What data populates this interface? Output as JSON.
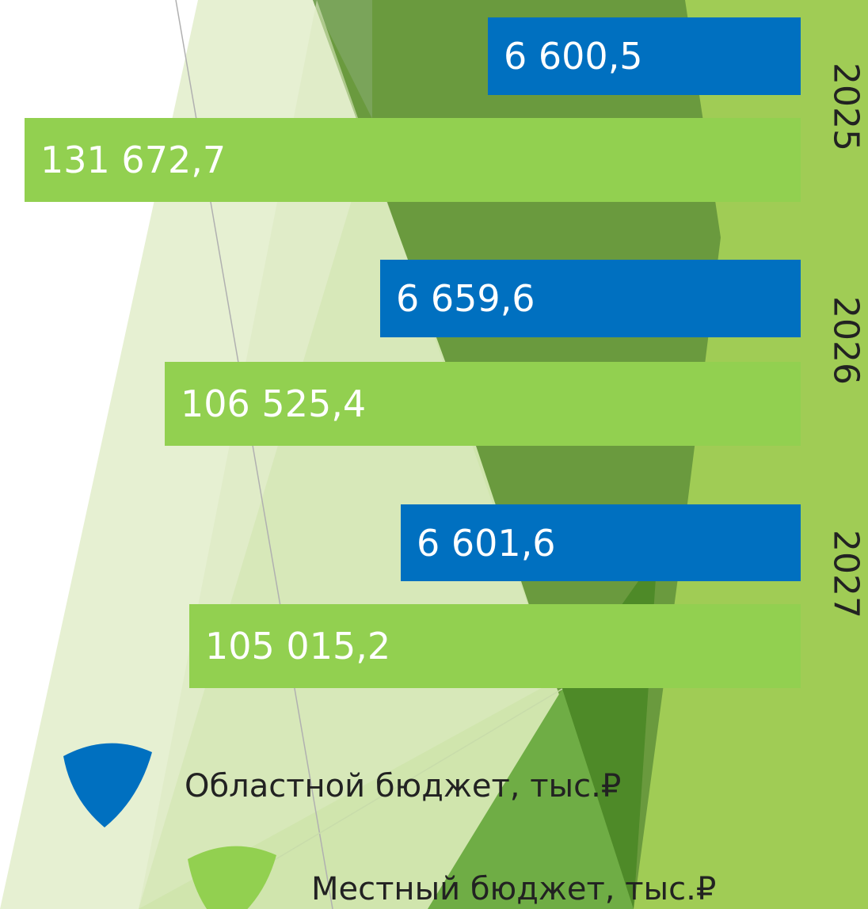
{
  "rows": [
    {
      "year": "2025",
      "regional": "6 600,5",
      "local": "131 672,7"
    },
    {
      "year": "2026",
      "regional": "6 659,6",
      "local": "106 525,4"
    },
    {
      "year": "2027",
      "regional": "6 601,6",
      "local": "105 015,2"
    }
  ],
  "legend": {
    "regional": "Областной бюджет, тыс.₽",
    "local": "Местный бюджет, тыс.₽"
  }
}
